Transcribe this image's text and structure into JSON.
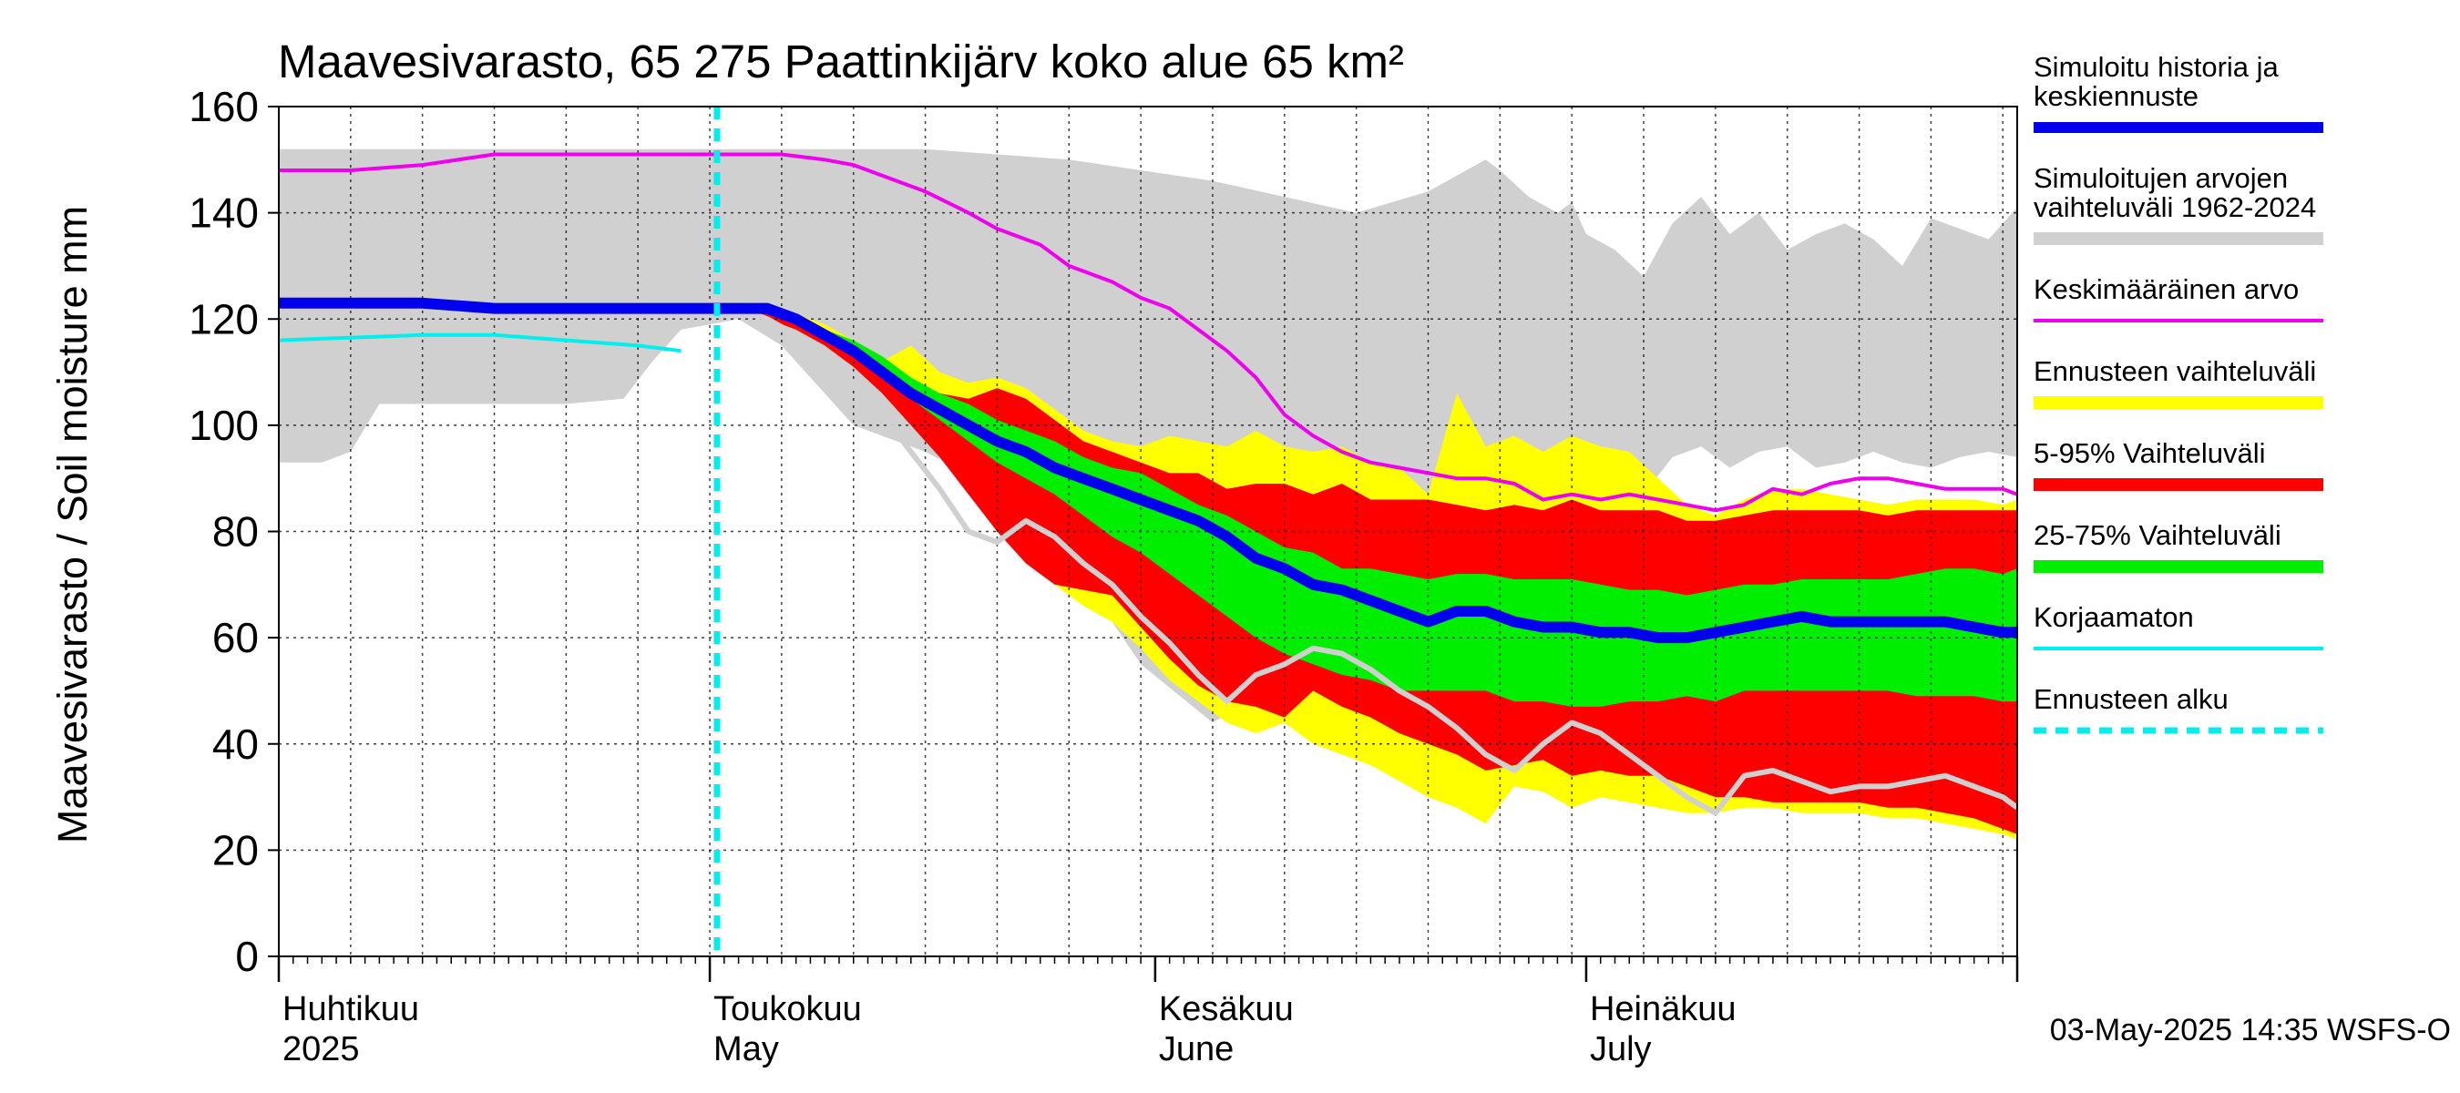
{
  "chart_data": {
    "type": "area",
    "title": "Maavesivarasto, 65 275 Paattinkijärv koko alue 65 km²",
    "ylabel": "Maavesivarasto / Soil moisture   mm",
    "ylim": [
      0,
      160
    ],
    "yticks": [
      "0",
      "20",
      "40",
      "60",
      "80",
      "100",
      "120",
      "140",
      "160"
    ],
    "xlim_days": [
      0,
      121
    ],
    "x_unit": "days since 2025-04-01",
    "month_labels": [
      {
        "day": 0,
        "fi": "Huhtikuu",
        "en": "2025"
      },
      {
        "day": 30,
        "fi": "Toukokuu",
        "en": "May"
      },
      {
        "day": 61,
        "fi": "Kesäkuu",
        "en": "June"
      },
      {
        "day": 91,
        "fi": "Heinäkuu",
        "en": "July"
      }
    ],
    "forecast_start_day": 30.5,
    "footer": "03-May-2025 14:35 WSFS-O",
    "legend": [
      {
        "label": "Simuloitu historia ja keskiennuste",
        "color": "#0000ee",
        "style": "thick"
      },
      {
        "label": "Simuloitujen arvojen vaihteluväli 1962-2024",
        "color": "#d0d0d0",
        "style": "band"
      },
      {
        "label": "Keskimääräinen arvo",
        "color": "#ee00ee",
        "style": "thin"
      },
      {
        "label": "Ennusteen vaihteluväli",
        "color": "#ffff00",
        "style": "band"
      },
      {
        "label": "5-95% Vaihteluväli",
        "color": "#ff0000",
        "style": "band"
      },
      {
        "label": "25-75% Vaihteluväli",
        "color": "#00ee00",
        "style": "band"
      },
      {
        "label": "Korjaamaton",
        "color": "#00eeee",
        "style": "thin"
      },
      {
        "label": "Ennusteen alku",
        "color": "#00eeee",
        "style": "dashed"
      }
    ],
    "series": {
      "hist_range": {
        "days": [
          0,
          3,
          5,
          7,
          10,
          15,
          20,
          24,
          26,
          28,
          30,
          32,
          35,
          40,
          45,
          50,
          55,
          60,
          65,
          70,
          75,
          80,
          84,
          85,
          87,
          89,
          90,
          91,
          93,
          95,
          97,
          99,
          101,
          103,
          105,
          107,
          109,
          111,
          113,
          115,
          117,
          119,
          121
        ],
        "upper": [
          152,
          152,
          152,
          152,
          152,
          152,
          152,
          152,
          152,
          152,
          152,
          152,
          152,
          152,
          152,
          151,
          150,
          148,
          146,
          143,
          140,
          144,
          150,
          148,
          143,
          140,
          142,
          136,
          133,
          128,
          138,
          143,
          136,
          140,
          133,
          136,
          138,
          135,
          130,
          139,
          137,
          135,
          141
        ],
        "lower": [
          93,
          93,
          95,
          104,
          104,
          104,
          104,
          105,
          112,
          118,
          119,
          120,
          115,
          100,
          95,
          88,
          75,
          55,
          44,
          52,
          62,
          76,
          83,
          85,
          88,
          91,
          92,
          90,
          95,
          87,
          94,
          96,
          92,
          95,
          96,
          92,
          93,
          95,
          93,
          92,
          94,
          95,
          94
        ]
      },
      "mean": {
        "days": [
          0,
          5,
          10,
          15,
          20,
          25,
          30,
          33,
          35,
          38,
          40,
          42,
          45,
          48,
          50,
          53,
          55,
          58,
          60,
          62,
          64,
          66,
          68,
          70,
          72,
          74,
          76,
          78,
          80,
          82,
          84,
          86,
          88,
          90,
          92,
          94,
          96,
          98,
          100,
          102,
          104,
          106,
          108,
          110,
          112,
          114,
          116,
          118,
          120,
          121
        ],
        "values": [
          148,
          148,
          149,
          151,
          151,
          151,
          151,
          151,
          151,
          150,
          149,
          147,
          144,
          140,
          137,
          134,
          130,
          127,
          124,
          122,
          118,
          114,
          109,
          102,
          98,
          95,
          93,
          92,
          91,
          90,
          90,
          89,
          86,
          87,
          86,
          87,
          86,
          85,
          84,
          85,
          88,
          87,
          89,
          90,
          90,
          89,
          88,
          88,
          88,
          87
        ]
      },
      "uncorrected": {
        "days": [
          0,
          5,
          10,
          15,
          20,
          25,
          28
        ],
        "values": [
          116,
          116.5,
          117,
          117,
          116,
          115,
          114
        ]
      },
      "median": {
        "days": [
          0,
          5,
          10,
          15,
          20,
          25,
          30,
          34,
          36,
          38,
          40,
          42,
          44,
          46,
          48,
          50,
          52,
          54,
          56,
          58,
          60,
          62,
          64,
          66,
          68,
          70,
          72,
          74,
          76,
          78,
          80,
          82,
          84,
          86,
          88,
          90,
          92,
          94,
          96,
          98,
          100,
          102,
          104,
          106,
          108,
          110,
          112,
          114,
          116,
          118,
          120,
          121
        ],
        "values": [
          123,
          123,
          123,
          122,
          122,
          122,
          122,
          122,
          120,
          117,
          114,
          110,
          106,
          103,
          100,
          97,
          95,
          92,
          90,
          88,
          86,
          84,
          82,
          79,
          75,
          73,
          70,
          69,
          67,
          65,
          63,
          65,
          65,
          63,
          62,
          62,
          61,
          61,
          60,
          60,
          61,
          62,
          63,
          64,
          63,
          63,
          63,
          63,
          63,
          62,
          61,
          61
        ]
      },
      "forecast_range": {
        "days": [
          31,
          34,
          36,
          38,
          40,
          42,
          44,
          46,
          48,
          50,
          52,
          54,
          56,
          58,
          60,
          62,
          64,
          66,
          68,
          70,
          72,
          74,
          76,
          78,
          80,
          82,
          84,
          86,
          88,
          90,
          92,
          94,
          96,
          98,
          100,
          102,
          104,
          106,
          108,
          110,
          112,
          114,
          116,
          118,
          120,
          121
        ],
        "upper": [
          122,
          122,
          121,
          119,
          116,
          112,
          115,
          110,
          108,
          109,
          107,
          103,
          99,
          97,
          96,
          98,
          97,
          96,
          99,
          96,
          95,
          96,
          93,
          92,
          87,
          106,
          96,
          98,
          95,
          98,
          96,
          95,
          90,
          85,
          83,
          86,
          88,
          88,
          87,
          86,
          85,
          86,
          86,
          86,
          85,
          86
        ],
        "lower": [
          122,
          121,
          119,
          117,
          113,
          108,
          102,
          96,
          90,
          83,
          76,
          70,
          66,
          63,
          58,
          52,
          48,
          44,
          42,
          44,
          40,
          38,
          36,
          33,
          30,
          28,
          25,
          32,
          31,
          28,
          30,
          29,
          28,
          27,
          27,
          28,
          28,
          27,
          27,
          27,
          26,
          26,
          25,
          24,
          23,
          22
        ]
      },
      "p5_95": {
        "days": [
          31,
          34,
          36,
          38,
          40,
          42,
          44,
          46,
          48,
          50,
          52,
          54,
          56,
          58,
          60,
          62,
          64,
          66,
          68,
          70,
          72,
          74,
          76,
          78,
          80,
          82,
          84,
          86,
          88,
          90,
          92,
          94,
          96,
          98,
          100,
          102,
          104,
          106,
          108,
          110,
          112,
          114,
          116,
          118,
          120,
          121
        ],
        "upper": [
          122,
          121,
          120,
          117,
          113,
          110,
          108,
          106,
          105,
          107,
          105,
          101,
          97,
          95,
          93,
          91,
          91,
          88,
          89,
          89,
          87,
          89,
          86,
          86,
          86,
          85,
          84,
          85,
          84,
          86,
          84,
          84,
          84,
          82,
          82,
          83,
          84,
          84,
          84,
          84,
          83,
          84,
          84,
          84,
          84,
          84
        ],
        "lower": [
          122,
          120,
          118,
          115,
          111,
          106,
          100,
          94,
          87,
          80,
          74,
          70,
          69,
          68,
          62,
          56,
          51,
          48,
          47,
          45,
          50,
          47,
          45,
          42,
          40,
          38,
          35,
          36,
          37,
          34,
          35,
          34,
          34,
          32,
          30,
          30,
          29,
          29,
          29,
          29,
          28,
          28,
          27,
          26,
          24,
          23
        ]
      },
      "p25_75": {
        "days": [
          31,
          34,
          36,
          38,
          40,
          42,
          44,
          46,
          48,
          50,
          52,
          54,
          56,
          58,
          60,
          62,
          64,
          66,
          68,
          70,
          72,
          74,
          76,
          78,
          80,
          82,
          84,
          86,
          88,
          90,
          92,
          94,
          96,
          98,
          100,
          102,
          104,
          106,
          108,
          110,
          112,
          114,
          116,
          118,
          120,
          121
        ],
        "upper": [
          122,
          121,
          120,
          118,
          116,
          113,
          109,
          106,
          104,
          101,
          99,
          97,
          94,
          92,
          91,
          88,
          85,
          83,
          80,
          77,
          76,
          73,
          73,
          72,
          71,
          72,
          72,
          71,
          71,
          71,
          70,
          69,
          69,
          68,
          69,
          70,
          70,
          71,
          71,
          71,
          71,
          72,
          73,
          73,
          72,
          73
        ],
        "lower": [
          122,
          121,
          119,
          117,
          114,
          110,
          105,
          101,
          97,
          93,
          90,
          87,
          83,
          79,
          76,
          72,
          68,
          64,
          60,
          57,
          55,
          53,
          52,
          50,
          50,
          50,
          50,
          48,
          48,
          47,
          47,
          48,
          48,
          49,
          48,
          50,
          50,
          50,
          50,
          50,
          50,
          49,
          49,
          49,
          48,
          48
        ]
      },
      "dry_year": {
        "days": [
          32,
          34,
          36,
          38,
          40,
          42,
          44,
          46,
          48,
          50,
          52,
          54,
          56,
          58,
          60,
          62,
          64,
          66,
          68,
          70,
          72,
          74,
          76,
          78,
          80,
          82,
          84,
          86,
          88,
          90,
          92,
          94,
          96,
          98,
          100,
          102,
          104,
          106,
          108,
          110,
          112,
          114,
          116,
          118,
          120,
          121
        ],
        "values": [
          122,
          120,
          117,
          113,
          108,
          102,
          95,
          88,
          80,
          78,
          82,
          79,
          74,
          70,
          64,
          59,
          53,
          48,
          53,
          55,
          58,
          57,
          54,
          50,
          47,
          43,
          38,
          35,
          40,
          44,
          42,
          38,
          34,
          30,
          27,
          34,
          35,
          33,
          31,
          32,
          32,
          33,
          34,
          32,
          30,
          28
        ]
      }
    }
  }
}
